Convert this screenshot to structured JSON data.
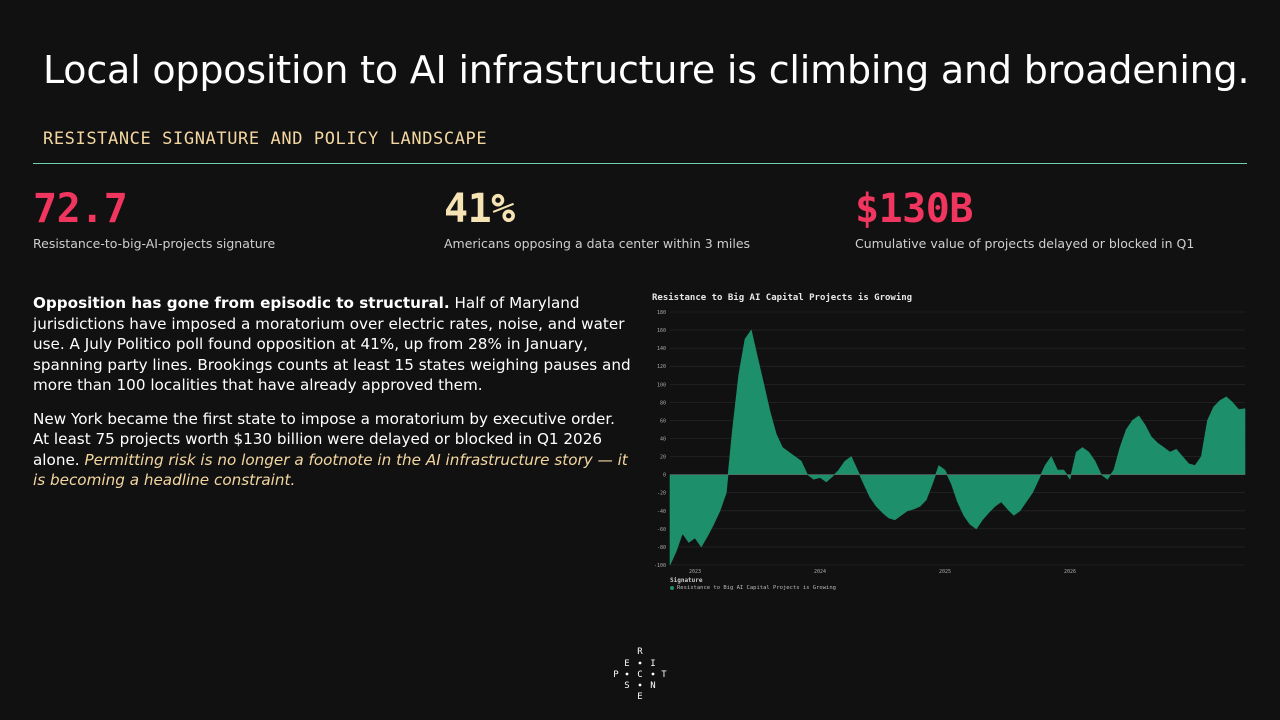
{
  "title": "Local opposition to AI infrastructure is climbing and broadening.",
  "section_label": "RESISTANCE SIGNATURE AND POLICY LANDSCAPE",
  "stats": [
    {
      "value": "72.7",
      "caption": "Resistance-to-big-AI-projects signature",
      "color": "#f0365e"
    },
    {
      "value": "41%",
      "caption": "Americans opposing a data center within 3 miles",
      "color": "#f6e3b4"
    },
    {
      "value": "$130B",
      "caption": "Cumulative value of projects delayed or blocked in Q1",
      "color": "#f0365e"
    }
  ],
  "paragraph1": {
    "lead": "Opposition has gone from episodic to structural.",
    "text": " Half of Maryland jurisdictions have imposed a moratorium over electric rates, noise, and water use. A July Politico poll found opposition at 41%, up from 28% in January, spanning party lines. Brookings counts at least 15 states weighing pauses and more than 100 localities that have already approved them."
  },
  "paragraph2": {
    "text": "New York became the first state to impose a moratorium by executive order. At least 75 projects worth $130 billion were delayed or blocked in Q1 2026 alone. ",
    "emphasis": "Permitting risk is no longer a footnote in the AI infrastructure story — it is becoming a headline constraint."
  },
  "logo_letters": {
    "top": "R",
    "row2": [
      "E",
      "I"
    ],
    "row3": [
      "P",
      "C",
      "T"
    ],
    "row4": [
      "S",
      "N"
    ],
    "bottom": "E"
  },
  "chart_data": {
    "type": "area",
    "title": "Resistance to Big AI Capital Projects is Growing",
    "legend_title": "Signature",
    "series": [
      {
        "name": "Resistance to Big AI Capital Projects is Growing",
        "color": "#1e8f6b",
        "x": [
          2022.0,
          2022.05,
          2022.1,
          2022.15,
          2022.2,
          2022.25,
          2022.3,
          2022.35,
          2022.4,
          2022.45,
          2022.5,
          2022.55,
          2022.6,
          2022.65,
          2022.7,
          2022.75,
          2022.8,
          2022.85,
          2022.9,
          2022.95,
          2023.0,
          2023.05,
          2023.1,
          2023.15,
          2023.2,
          2023.25,
          2023.3,
          2023.35,
          2023.4,
          2023.45,
          2023.5,
          2023.55,
          2023.6,
          2023.65,
          2023.7,
          2023.75,
          2023.8,
          2023.85,
          2023.9,
          2023.95,
          2024.0,
          2024.05,
          2024.1,
          2024.15,
          2024.2,
          2024.25,
          2024.3,
          2024.35,
          2024.4,
          2024.45,
          2024.5,
          2024.55,
          2024.6,
          2024.65,
          2024.7,
          2024.75,
          2024.8,
          2024.85,
          2024.9,
          2024.95,
          2025.0,
          2025.05,
          2025.1,
          2025.15,
          2025.2,
          2025.25,
          2025.3,
          2025.35,
          2025.4,
          2025.45,
          2025.5,
          2025.55,
          2025.6,
          2025.65,
          2025.7,
          2025.75,
          2025.8,
          2025.85,
          2025.9,
          2025.95,
          2026.0,
          2026.05,
          2026.1,
          2026.15,
          2026.2,
          2026.25,
          2026.3,
          2026.35,
          2026.4,
          2026.45,
          2026.5,
          2026.55,
          2026.6
        ],
        "values": [
          -100,
          -85,
          -65,
          -75,
          -70,
          -80,
          -68,
          -55,
          -40,
          -20,
          50,
          110,
          150,
          160,
          130,
          100,
          70,
          45,
          30,
          25,
          20,
          15,
          0,
          -5,
          -3,
          -8,
          -2,
          5,
          15,
          20,
          5,
          -10,
          -25,
          -35,
          -42,
          -48,
          -50,
          -45,
          -40,
          -38,
          -35,
          -28,
          -10,
          10,
          5,
          -10,
          -30,
          -45,
          -55,
          -60,
          -50,
          -42,
          -35,
          -30,
          -38,
          -45,
          -40,
          -30,
          -20,
          -5,
          10,
          20,
          5,
          5,
          -5,
          25,
          30,
          25,
          15,
          0,
          -5,
          5,
          30,
          50,
          60,
          65,
          55,
          42,
          35,
          30,
          25,
          28,
          20,
          12,
          10,
          20,
          60,
          75,
          82,
          86,
          80,
          72,
          73
        ],
        "note": "Approximate values estimated from the plotted area"
      }
    ],
    "xticks": [
      "2023",
      "2024",
      "2025",
      "2026"
    ],
    "xtick_values": [
      2022.2,
      2023.2,
      2024.2,
      2025.2
    ],
    "yticks": [
      -100,
      -80,
      -60,
      -40,
      -20,
      0,
      20,
      40,
      60,
      80,
      100,
      120,
      140,
      160,
      180
    ],
    "ylim": [
      -100,
      180
    ],
    "xlim": [
      2022.0,
      2026.6
    ],
    "grid": true,
    "legend_position": "bottom-left"
  }
}
